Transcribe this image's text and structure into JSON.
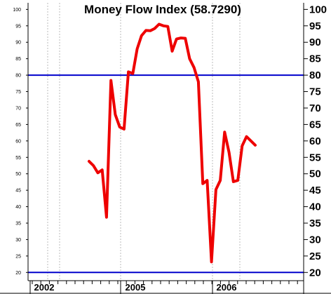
{
  "chart_data": {
    "type": "line",
    "title": "Money Flow Index (58.7290)",
    "xlabel": "",
    "ylabel": "",
    "ylim": [
      17.5,
      102
    ],
    "y_ticks": [
      20,
      25,
      30,
      35,
      40,
      45,
      50,
      55,
      60,
      65,
      70,
      75,
      80,
      85,
      90,
      95,
      100
    ],
    "x_labels": [
      "2002",
      "2005",
      "2006"
    ],
    "grid": "vertical dotted",
    "reference_lines": [
      80,
      20
    ],
    "colors": {
      "series": "#ee0000",
      "reference": "#0000cc",
      "grid": "#bbbbbb",
      "frame": "#000000"
    },
    "series": [
      {
        "values": [
          53.8,
          52.5,
          50.3,
          51.2,
          36.8,
          78.4,
          68.0,
          64.2,
          63.6,
          81.0,
          80.5,
          88.0,
          92.0,
          93.6,
          93.5,
          94.2,
          95.5,
          95.0,
          94.8,
          87.3,
          91.0,
          91.3,
          91.2,
          85.0,
          82.3,
          78.0,
          47.0,
          48.0,
          23.2,
          45.2,
          48.0,
          62.7,
          56.5,
          47.6,
          48.0,
          58.5,
          61.3,
          60.0,
          58.7
        ]
      }
    ]
  }
}
